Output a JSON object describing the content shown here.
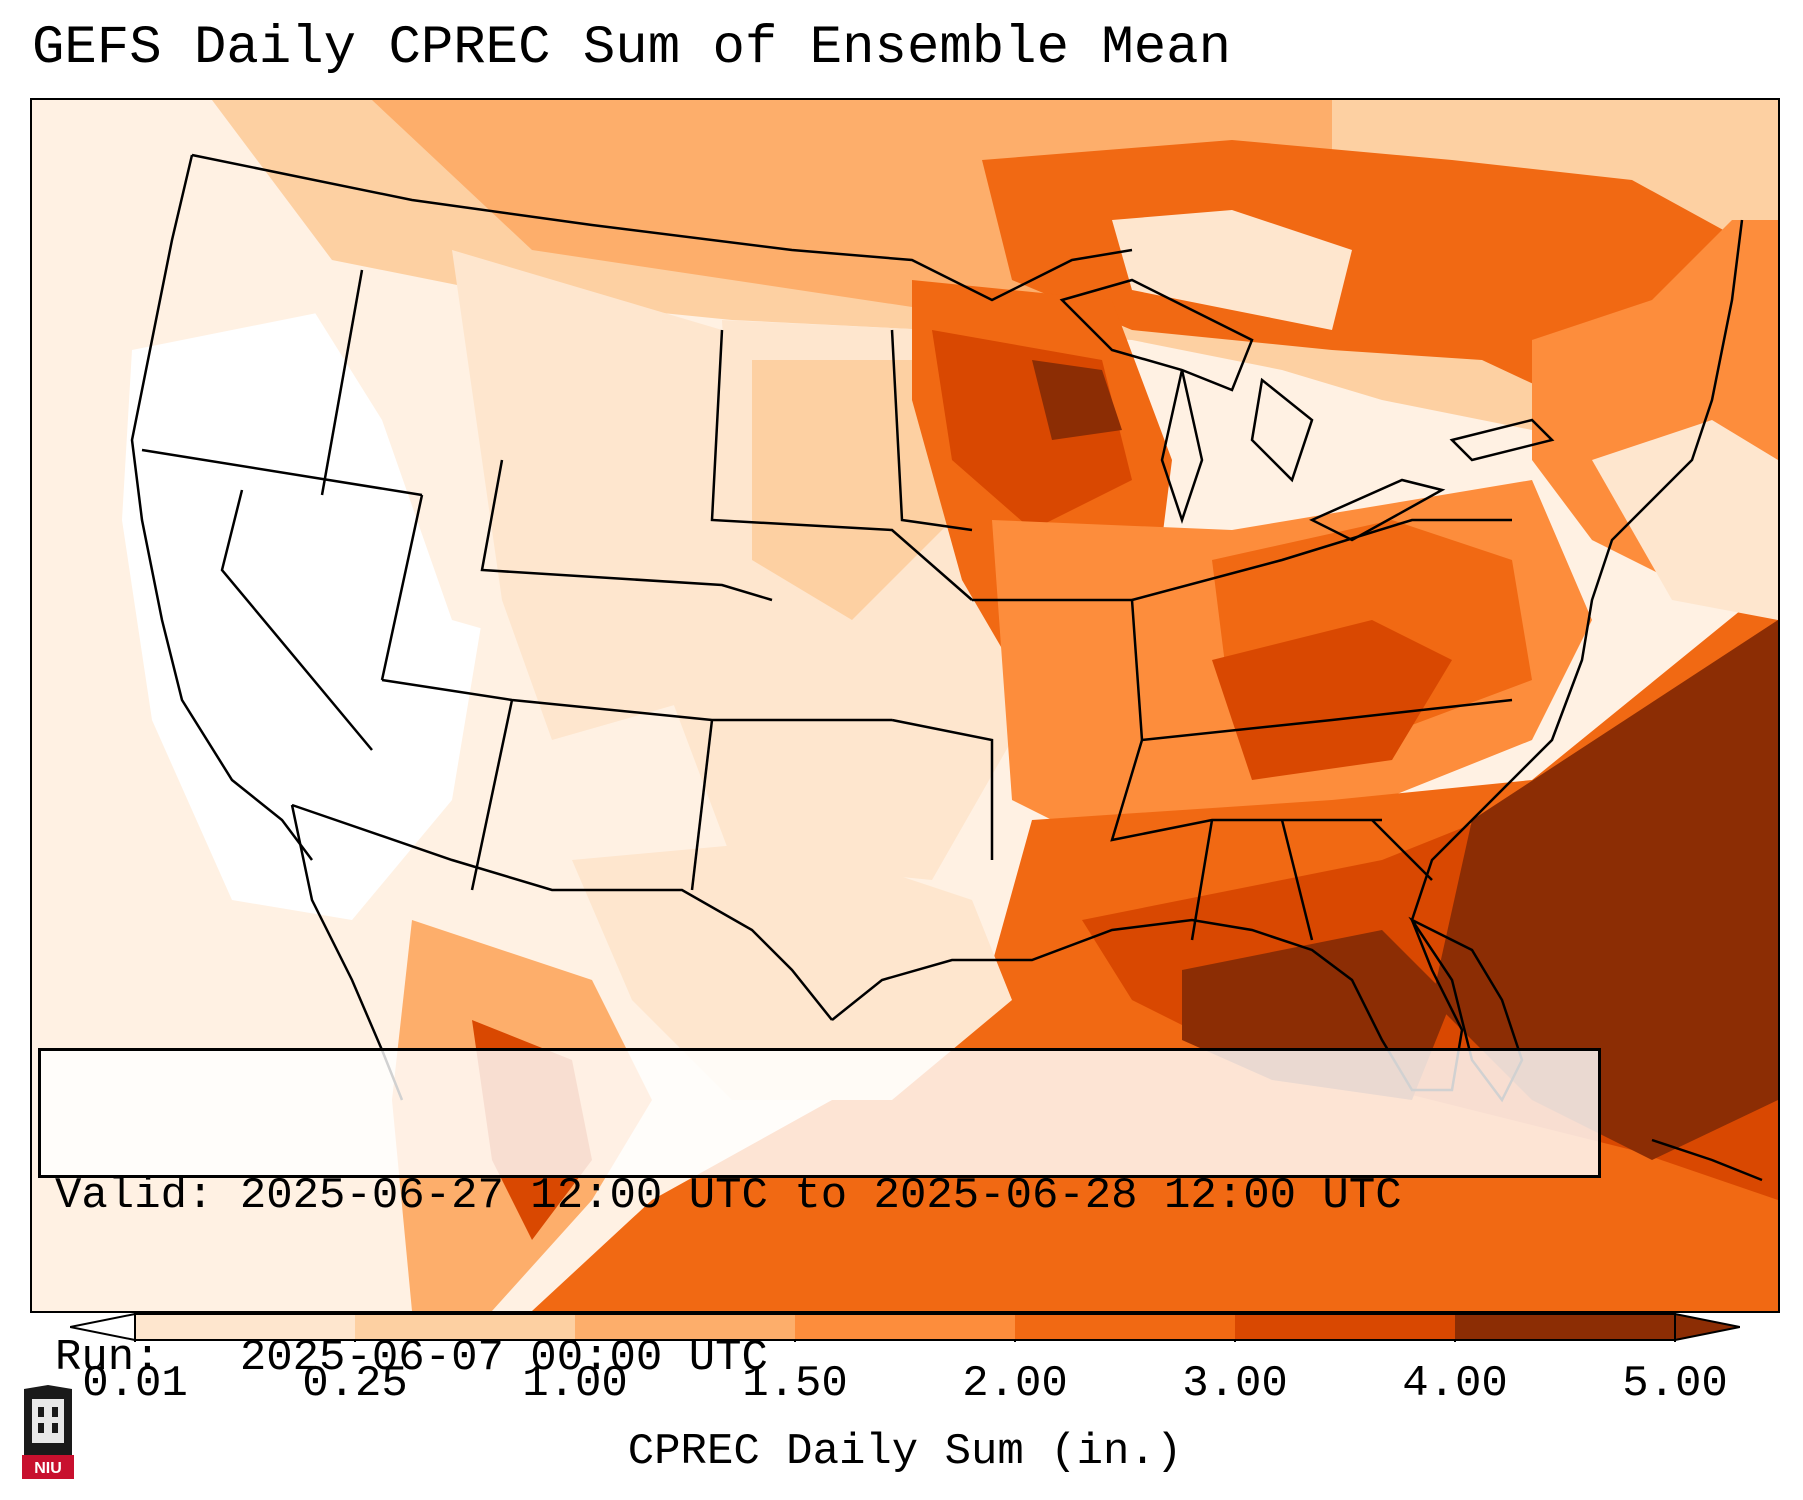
{
  "title": "GEFS Daily CPREC Sum of Ensemble Mean",
  "info": {
    "valid_label": "Valid:",
    "valid_value": "2025-06-27 12:00 UTC to 2025-06-28 12:00 UTC",
    "run_label": "Run:",
    "run_value": "2025-06-07 00:00 UTC"
  },
  "colorbar": {
    "label": "CPREC Daily Sum (in.)",
    "ticks": [
      "0.01",
      "0.25",
      "1.00",
      "1.50",
      "2.00",
      "3.00",
      "4.00",
      "5.00"
    ],
    "colors": [
      "#fff5eb",
      "#fee6ce",
      "#fdd0a2",
      "#fdae6b",
      "#fd8d3c",
      "#f16913",
      "#d94801",
      "#8c2d04"
    ]
  },
  "logo": {
    "name": "niu-logo",
    "text": "NIU"
  },
  "map": {
    "region": "Contiguous United States",
    "colors": {
      "none": "#ffffff",
      "trace": "#fff1e3",
      "light": "#fee6ce",
      "moderate": "#fdd0a2",
      "medium": "#fdae6b",
      "high": "#f16913",
      "very_high": "#d94801",
      "extreme": "#8c2d04"
    }
  }
}
